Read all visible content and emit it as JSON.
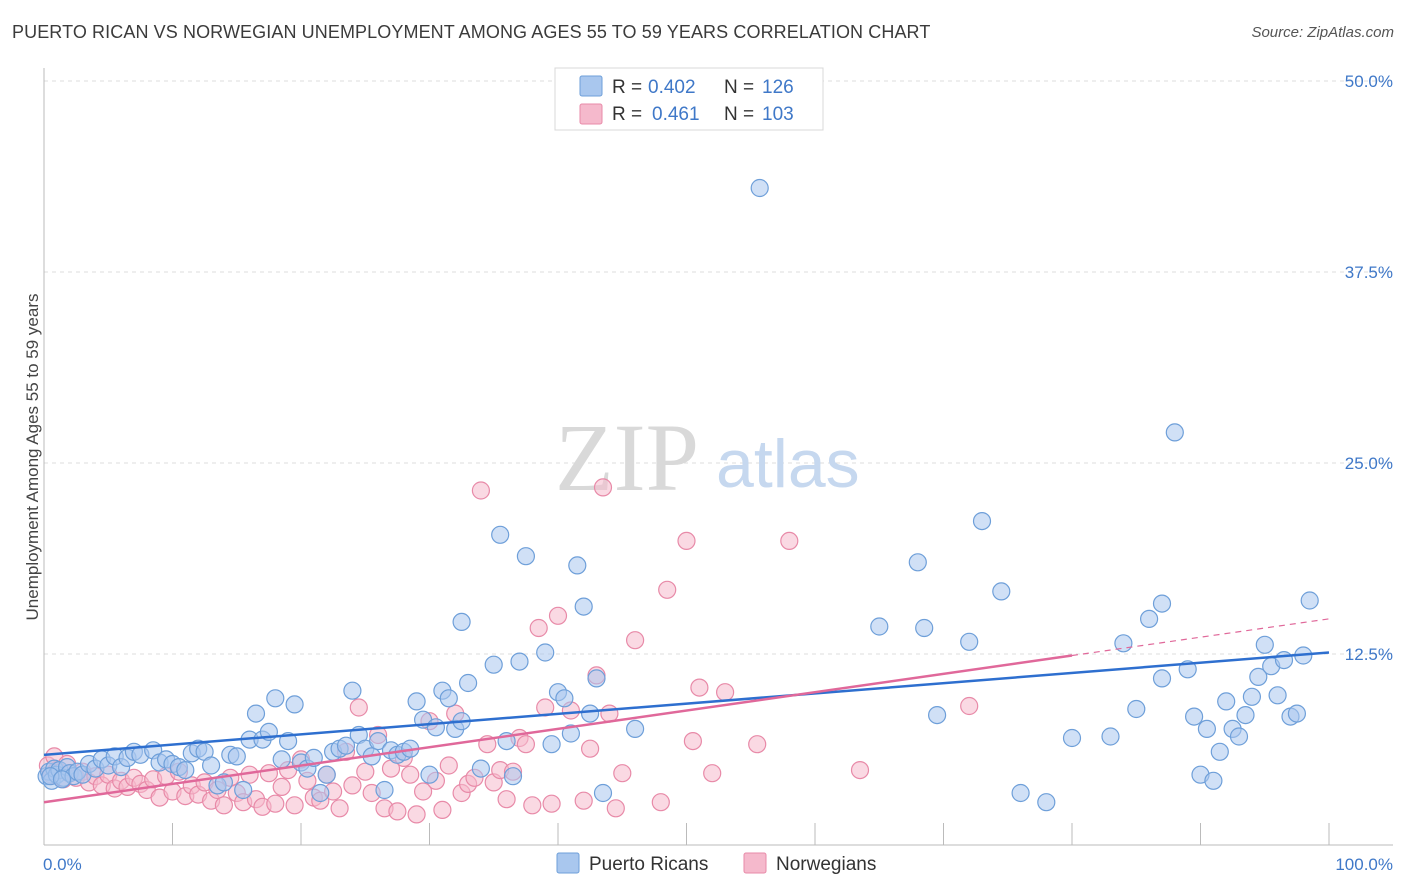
{
  "header": {
    "title": "PUERTO RICAN VS NORWEGIAN UNEMPLOYMENT AMONG AGES 55 TO 59 YEARS CORRELATION CHART",
    "source": "Source: ZipAtlas.com"
  },
  "watermark": {
    "zip": "ZIP",
    "atlas": "atlas"
  },
  "legend_top": {
    "rows": [
      {
        "r_label": "R =",
        "r_value": "0.402",
        "n_label": "N =",
        "n_value": "126"
      },
      {
        "r_label": "R =",
        "r_value": "0.461",
        "n_label": "N =",
        "n_value": "103"
      }
    ]
  },
  "legend_bottom": {
    "items": [
      "Puerto Ricans",
      "Norwegians"
    ]
  },
  "colors": {
    "blue_fill": "#a9c7ee",
    "blue_stroke": "#6e9fd9",
    "blue_line": "#2e6fcf",
    "pink_fill": "#f5b9cc",
    "pink_stroke": "#e88aa8",
    "pink_line": "#e0689a",
    "tick_text": "#3f78c8",
    "grid": "#dddddd"
  },
  "chart_data": {
    "type": "scatter",
    "title": "PUERTO RICAN VS NORWEGIAN UNEMPLOYMENT AMONG AGES 55 TO 59 YEARS CORRELATION CHART",
    "xlabel": "",
    "ylabel": "Unemployment Among Ages 55 to 59 years",
    "xlim": [
      0,
      100
    ],
    "ylim": [
      0,
      52
    ],
    "x_tick_labels": [
      "0.0%",
      "100.0%"
    ],
    "y_ticks": [
      12.5,
      25.0,
      37.5,
      50.0
    ],
    "y_tick_labels": [
      "12.5%",
      "25.0%",
      "37.5%",
      "50.0%"
    ],
    "grid": true,
    "legend_position": "top-center",
    "series": [
      {
        "name": "Puerto Ricans",
        "r": 0.402,
        "n": 126,
        "trend": {
          "x": [
            0,
            100
          ],
          "y": [
            5.9,
            12.6
          ]
        },
        "points": [
          [
            0.2,
            4.5
          ],
          [
            0.4,
            4.8
          ],
          [
            0.6,
            4.2
          ],
          [
            0.8,
            5.0
          ],
          [
            1.0,
            4.6
          ],
          [
            1.2,
            4.9
          ],
          [
            1.5,
            4.4
          ],
          [
            1.8,
            5.1
          ],
          [
            2.0,
            4.7
          ],
          [
            2.3,
            4.5
          ],
          [
            2.6,
            4.8
          ],
          [
            3.0,
            4.6
          ],
          [
            3.5,
            5.3
          ],
          [
            4.0,
            5.0
          ],
          [
            4.5,
            5.6
          ],
          [
            5.0,
            5.2
          ],
          [
            5.5,
            5.8
          ],
          [
            6.0,
            5.1
          ],
          [
            6.5,
            5.7
          ],
          [
            7.0,
            6.1
          ],
          [
            7.5,
            5.9
          ],
          [
            8.5,
            6.2
          ],
          [
            9.0,
            5.4
          ],
          [
            9.5,
            5.6
          ],
          [
            10.0,
            5.3
          ],
          [
            10.5,
            5.1
          ],
          [
            11.0,
            4.9
          ],
          [
            11.5,
            6.0
          ],
          [
            12.0,
            6.3
          ],
          [
            12.5,
            6.1
          ],
          [
            13.0,
            5.2
          ],
          [
            13.5,
            3.9
          ],
          [
            14.0,
            4.1
          ],
          [
            14.5,
            5.9
          ],
          [
            15.0,
            5.8
          ],
          [
            15.5,
            3.6
          ],
          [
            16.0,
            6.9
          ],
          [
            16.5,
            8.6
          ],
          [
            17.0,
            6.9
          ],
          [
            17.5,
            7.4
          ],
          [
            18.0,
            9.6
          ],
          [
            18.5,
            5.6
          ],
          [
            19.0,
            6.8
          ],
          [
            19.5,
            9.2
          ],
          [
            20.0,
            5.4
          ],
          [
            20.5,
            5.0
          ],
          [
            21.0,
            5.7
          ],
          [
            21.5,
            3.4
          ],
          [
            22.0,
            4.6
          ],
          [
            22.5,
            6.1
          ],
          [
            23.0,
            6.3
          ],
          [
            23.5,
            6.5
          ],
          [
            24.0,
            10.1
          ],
          [
            24.5,
            7.2
          ],
          [
            25.0,
            6.3
          ],
          [
            25.5,
            5.8
          ],
          [
            26.0,
            6.8
          ],
          [
            26.5,
            3.6
          ],
          [
            27.0,
            6.2
          ],
          [
            27.5,
            5.9
          ],
          [
            28.0,
            6.1
          ],
          [
            28.5,
            6.3
          ],
          [
            29.0,
            9.4
          ],
          [
            29.5,
            8.2
          ],
          [
            30.0,
            4.6
          ],
          [
            30.5,
            7.7
          ],
          [
            31.0,
            10.1
          ],
          [
            31.5,
            9.6
          ],
          [
            32.0,
            7.6
          ],
          [
            32.5,
            8.1
          ],
          [
            32.5,
            14.6
          ],
          [
            33.0,
            10.6
          ],
          [
            34.0,
            5.0
          ],
          [
            35.0,
            11.8
          ],
          [
            35.5,
            20.3
          ],
          [
            36.0,
            6.8
          ],
          [
            36.5,
            4.5
          ],
          [
            37.0,
            12.0
          ],
          [
            37.5,
            18.9
          ],
          [
            39.0,
            12.6
          ],
          [
            39.5,
            6.6
          ],
          [
            40.0,
            10.0
          ],
          [
            40.5,
            9.6
          ],
          [
            41.0,
            7.3
          ],
          [
            41.5,
            18.3
          ],
          [
            42.0,
            15.6
          ],
          [
            42.5,
            8.6
          ],
          [
            43.0,
            10.9
          ],
          [
            43.5,
            3.4
          ],
          [
            46.0,
            7.6
          ],
          [
            55.7,
            43.0
          ],
          [
            65.0,
            14.3
          ],
          [
            68.0,
            18.5
          ],
          [
            68.5,
            14.2
          ],
          [
            69.5,
            8.5
          ],
          [
            72.0,
            13.3
          ],
          [
            73.0,
            21.2
          ],
          [
            74.5,
            16.6
          ],
          [
            76.0,
            3.4
          ],
          [
            78.0,
            2.8
          ],
          [
            80.0,
            7.0
          ],
          [
            83.0,
            7.1
          ],
          [
            84.0,
            13.2
          ],
          [
            85.0,
            8.9
          ],
          [
            86.0,
            14.8
          ],
          [
            87.0,
            15.8
          ],
          [
            87.0,
            10.9
          ],
          [
            88.0,
            27.0
          ],
          [
            89.0,
            11.5
          ],
          [
            89.5,
            8.4
          ],
          [
            90.0,
            4.6
          ],
          [
            90.5,
            7.6
          ],
          [
            91.0,
            4.2
          ],
          [
            91.5,
            6.1
          ],
          [
            92.0,
            9.4
          ],
          [
            92.5,
            7.6
          ],
          [
            93.0,
            7.1
          ],
          [
            93.5,
            8.5
          ],
          [
            94.0,
            9.7
          ],
          [
            94.5,
            11.0
          ],
          [
            95.0,
            13.1
          ],
          [
            95.5,
            11.7
          ],
          [
            96.0,
            9.8
          ],
          [
            96.5,
            12.1
          ],
          [
            97.0,
            8.4
          ],
          [
            97.5,
            8.6
          ],
          [
            98.0,
            12.4
          ],
          [
            98.5,
            16.0
          ],
          [
            0.5,
            4.5
          ],
          [
            1.4,
            4.3
          ]
        ]
      },
      {
        "name": "Norwegians",
        "r": 0.461,
        "n": 103,
        "trend": {
          "x": [
            0,
            80,
            100
          ],
          "y": [
            2.8,
            12.4,
            14.8
          ]
        },
        "points": [
          [
            0.3,
            5.2
          ],
          [
            0.6,
            4.6
          ],
          [
            1.0,
            4.9
          ],
          [
            1.5,
            4.3
          ],
          [
            2.0,
            4.7
          ],
          [
            2.5,
            4.4
          ],
          [
            3.0,
            4.8
          ],
          [
            3.5,
            4.1
          ],
          [
            4.0,
            4.5
          ],
          [
            4.5,
            3.9
          ],
          [
            5.0,
            4.6
          ],
          [
            5.5,
            3.7
          ],
          [
            6.0,
            4.2
          ],
          [
            6.5,
            3.8
          ],
          [
            7.0,
            4.4
          ],
          [
            7.5,
            4.0
          ],
          [
            8.0,
            3.6
          ],
          [
            8.5,
            4.3
          ],
          [
            9.0,
            3.1
          ],
          [
            9.5,
            4.5
          ],
          [
            10.0,
            3.5
          ],
          [
            10.5,
            4.8
          ],
          [
            11.0,
            3.2
          ],
          [
            11.5,
            3.9
          ],
          [
            12.0,
            3.3
          ],
          [
            12.5,
            4.1
          ],
          [
            13.0,
            2.9
          ],
          [
            13.5,
            3.6
          ],
          [
            14.0,
            2.6
          ],
          [
            14.5,
            4.4
          ],
          [
            15.0,
            3.4
          ],
          [
            15.5,
            2.8
          ],
          [
            16.0,
            4.6
          ],
          [
            16.5,
            3.0
          ],
          [
            17.0,
            2.5
          ],
          [
            17.5,
            4.7
          ],
          [
            18.0,
            2.7
          ],
          [
            18.5,
            3.8
          ],
          [
            19.0,
            4.9
          ],
          [
            19.5,
            2.6
          ],
          [
            20.0,
            5.6
          ],
          [
            20.5,
            4.2
          ],
          [
            21.0,
            3.1
          ],
          [
            21.5,
            2.9
          ],
          [
            22.0,
            4.6
          ],
          [
            22.5,
            3.5
          ],
          [
            23.0,
            2.4
          ],
          [
            23.5,
            6.1
          ],
          [
            24.0,
            3.9
          ],
          [
            24.5,
            9.0
          ],
          [
            25.0,
            4.8
          ],
          [
            25.5,
            3.4
          ],
          [
            26.0,
            7.2
          ],
          [
            26.5,
            2.4
          ],
          [
            27.0,
            5.0
          ],
          [
            27.5,
            2.2
          ],
          [
            28.0,
            5.7
          ],
          [
            28.5,
            4.6
          ],
          [
            29.0,
            2.0
          ],
          [
            29.5,
            3.5
          ],
          [
            30.0,
            8.1
          ],
          [
            30.5,
            4.2
          ],
          [
            31.0,
            2.3
          ],
          [
            31.5,
            5.2
          ],
          [
            32.0,
            8.6
          ],
          [
            32.5,
            3.4
          ],
          [
            33.0,
            4.0
          ],
          [
            33.5,
            4.4
          ],
          [
            34.0,
            23.2
          ],
          [
            34.5,
            6.6
          ],
          [
            35.0,
            4.1
          ],
          [
            35.5,
            4.9
          ],
          [
            36.0,
            3.0
          ],
          [
            36.5,
            4.8
          ],
          [
            37.0,
            7.0
          ],
          [
            37.5,
            6.6
          ],
          [
            38.0,
            2.6
          ],
          [
            38.5,
            14.2
          ],
          [
            39.0,
            9.0
          ],
          [
            39.5,
            2.7
          ],
          [
            40.0,
            15.0
          ],
          [
            41.0,
            8.8
          ],
          [
            42.0,
            2.9
          ],
          [
            42.5,
            6.3
          ],
          [
            43.0,
            11.1
          ],
          [
            43.5,
            23.4
          ],
          [
            44.0,
            8.6
          ],
          [
            44.5,
            2.4
          ],
          [
            45.0,
            4.7
          ],
          [
            46.0,
            13.4
          ],
          [
            48.0,
            2.8
          ],
          [
            48.5,
            16.7
          ],
          [
            50.0,
            19.9
          ],
          [
            50.5,
            6.8
          ],
          [
            51.0,
            10.3
          ],
          [
            52.0,
            4.7
          ],
          [
            53.0,
            10.0
          ],
          [
            55.5,
            6.6
          ],
          [
            58.0,
            19.9
          ],
          [
            63.5,
            4.9
          ],
          [
            72.0,
            9.1
          ],
          [
            0.8,
            5.8
          ],
          [
            1.8,
            5.3
          ]
        ]
      }
    ]
  }
}
